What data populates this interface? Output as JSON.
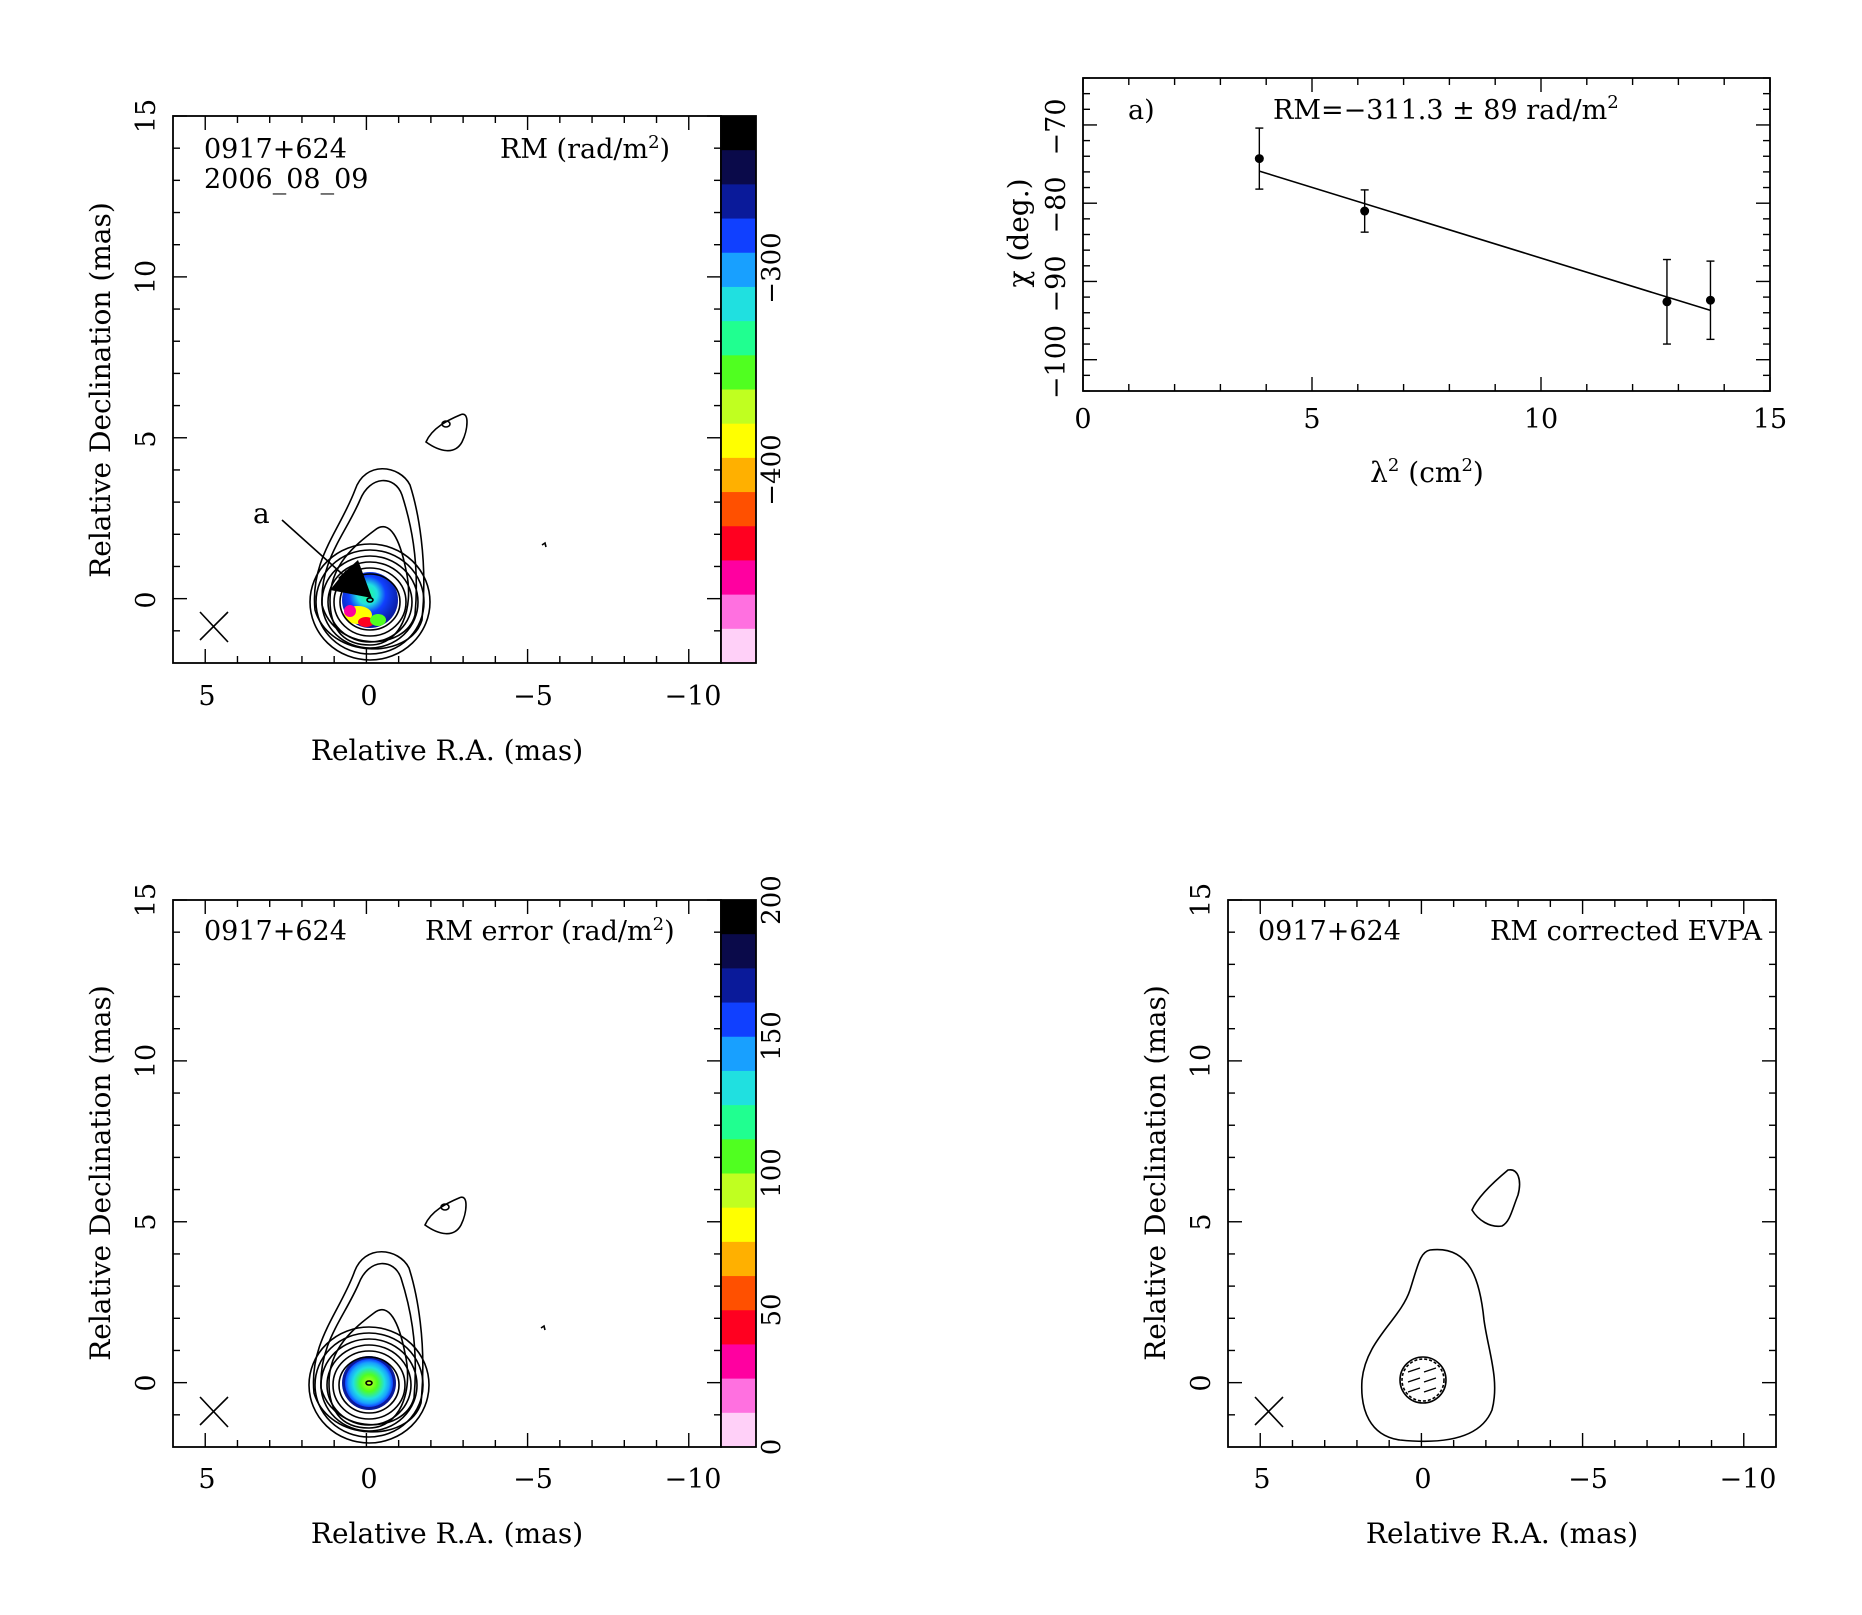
{
  "colors": {
    "rm_colorbar_top_to_bottom": [
      "#000000",
      "#0a0a4a",
      "#0a1a9a",
      "#1040ff",
      "#18a0ff",
      "#20e0e0",
      "#20ff90",
      "#50ff20",
      "#c0ff20",
      "#ffff00",
      "#ffb000",
      "#ff5000",
      "#ff0020",
      "#ff00a0",
      "#ff70e0",
      "#ffd0f8"
    ],
    "err_colorbar_top_to_bottom": [
      "#000000",
      "#0a0a4a",
      "#0a1a9a",
      "#1040ff",
      "#18a0ff",
      "#20e0e0",
      "#20ff90",
      "#50ff20",
      "#c0ff20",
      "#ffff00",
      "#ffb000",
      "#ff5000",
      "#ff0020",
      "#ff00a0",
      "#ff70e0",
      "#ffd0f8"
    ]
  },
  "panels": {
    "rm_map": {
      "source": "0917+624",
      "date": "2006_08_09",
      "label_main": "RM (rad/m",
      "label_sup": "2",
      "label_tail": ")",
      "xlabel": "Relative R.A. (mas)",
      "ylabel": "Relative Declination (mas)",
      "xticks": [
        "5",
        "0",
        "−5",
        "−10"
      ],
      "yticks": [
        "0",
        "5",
        "10",
        "15"
      ],
      "colorbar_ticks": [
        "−300",
        "−400"
      ],
      "annotation": "a"
    },
    "rm_error_map": {
      "source": "0917+624",
      "label_main": "RM error (rad/m",
      "label_sup": "2",
      "label_tail": ")",
      "xlabel": "Relative R.A. (mas)",
      "ylabel": "Relative Declination (mas)",
      "xticks": [
        "5",
        "0",
        "−5",
        "−10"
      ],
      "yticks": [
        "0",
        "5",
        "10",
        "15"
      ],
      "colorbar_ticks": [
        "0",
        "50",
        "100",
        "150",
        "200"
      ]
    },
    "evpa_map": {
      "source": "0917+624",
      "label": "RM corrected EVPA",
      "xlabel": "Relative R.A. (mas)",
      "ylabel": "Relative Declination (mas)",
      "xticks": [
        "5",
        "0",
        "−5",
        "−10"
      ],
      "yticks": [
        "0",
        "5",
        "10",
        "15"
      ]
    },
    "fit_plot": {
      "panel_label": "a)",
      "rm_text": "RM=−311.3 ± 89 rad/m",
      "rm_sup": "2",
      "xlabel_main": "λ",
      "xlabel_sup": "2",
      "xlabel_tail": " (cm",
      "xlabel_sup2": "2",
      "xlabel_end": ")",
      "ylabel": "χ (deg.)",
      "xticks": [
        "0",
        "5",
        "10",
        "15"
      ],
      "yticks": [
        "−100",
        "−90",
        "−80",
        "−70"
      ]
    }
  },
  "chart_data": [
    {
      "type": "scatter",
      "title": "a)",
      "annotation": "RM=−311.3 ± 89 rad/m2",
      "xlabel": "λ2 (cm2)",
      "ylabel": "χ (deg.)",
      "xlim": [
        0,
        15
      ],
      "ylim": [
        -104,
        -64
      ],
      "points": [
        {
          "x": 3.85,
          "y": -74.3,
          "err": 3.9
        },
        {
          "x": 6.15,
          "y": -81.0,
          "err": 2.7
        },
        {
          "x": 12.75,
          "y": -92.6,
          "err": 5.4
        },
        {
          "x": 13.7,
          "y": -92.4,
          "err": 5.0
        }
      ],
      "fit_line": {
        "x": [
          3.85,
          13.7
        ],
        "y": [
          -75.9,
          -93.7
        ]
      }
    },
    {
      "type": "heatmap",
      "title": "0917+624 2006_08_09",
      "annotation": "RM (rad/m2)",
      "xlabel": "Relative R.A. (mas)",
      "ylabel": "Relative Declination (mas)",
      "xlim": [
        6,
        -11
      ],
      "ylim": [
        -2,
        15
      ],
      "colorbar_range": [
        -460,
        -250
      ],
      "colorbar_ticks": [
        -300,
        -400
      ],
      "marker": {
        "label": "a",
        "from": [
          3.2,
          2.8
        ],
        "to": [
          0.3,
          0.2
        ]
      }
    },
    {
      "type": "heatmap",
      "title": "0917+624",
      "annotation": "RM error (rad/m2)",
      "xlabel": "Relative R.A. (mas)",
      "ylabel": "Relative Declination (mas)",
      "xlim": [
        6,
        -11
      ],
      "ylim": [
        -2,
        15
      ],
      "colorbar_range": [
        0,
        200
      ],
      "colorbar_ticks": [
        0,
        50,
        100,
        150,
        200
      ]
    },
    {
      "type": "heatmap",
      "title": "0917+624",
      "annotation": "RM corrected EVPA",
      "xlabel": "Relative R.A. (mas)",
      "ylabel": "Relative Declination (mas)",
      "xlim": [
        6,
        -11
      ],
      "ylim": [
        -2,
        15
      ]
    }
  ]
}
